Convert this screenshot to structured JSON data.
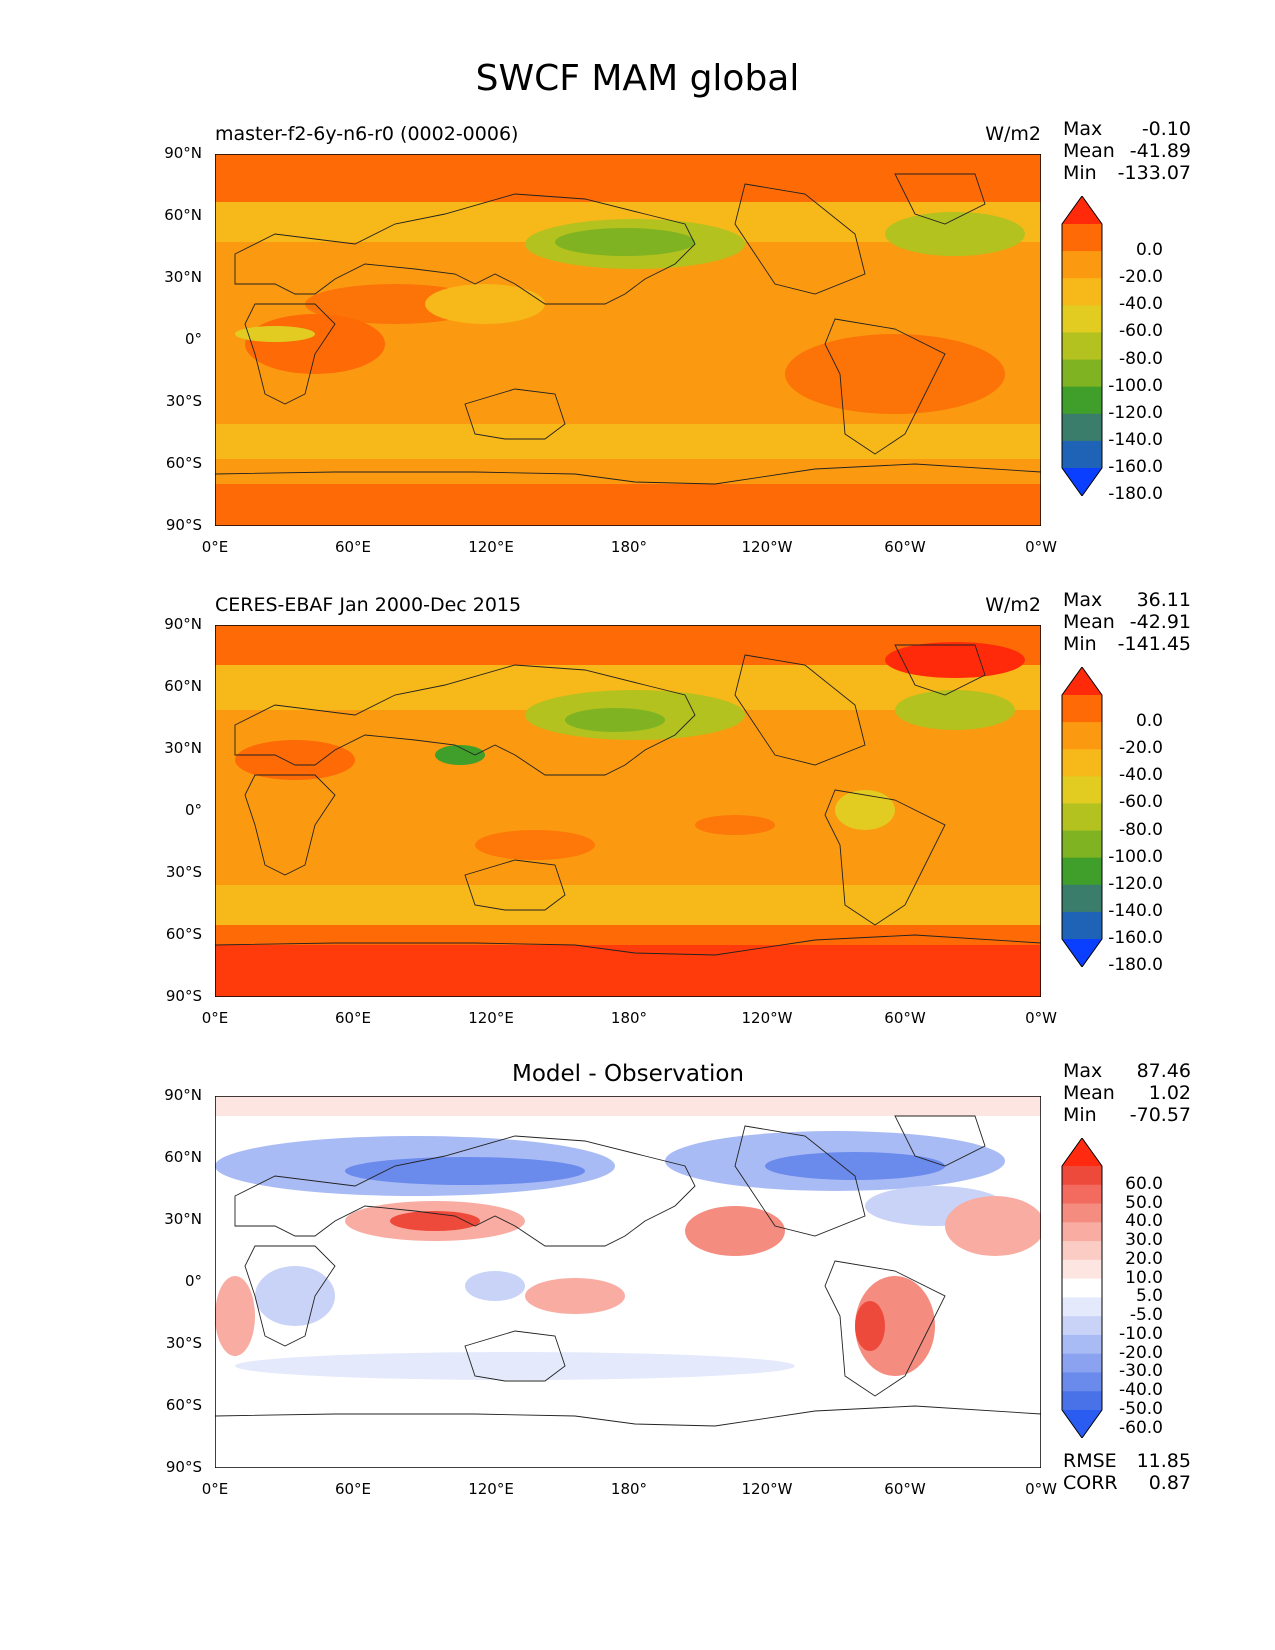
{
  "figure": {
    "title": "SWCF MAM global"
  },
  "lat_ticks": [
    "90°N",
    "60°N",
    "30°N",
    "0°",
    "30°S",
    "60°S",
    "90°S"
  ],
  "lon_ticks": [
    "0°E",
    "60°E",
    "120°E",
    "180°",
    "120°W",
    "60°W",
    "0°W"
  ],
  "panels": [
    {
      "title": "master-f2-6y-n6-r0 (0002-0006)",
      "title_align": "left",
      "units": "W/m2",
      "stats": {
        "max_label": "Max",
        "max": "-0.10",
        "mean_label": "Mean",
        "mean": "-41.89",
        "min_label": "Min",
        "min": "-133.07"
      },
      "colorbar": {
        "labels": [
          "0.0",
          "-20.0",
          "-40.0",
          "-60.0",
          "-80.0",
          "-100.0",
          "-120.0",
          "-140.0",
          "-160.0",
          "-180.0"
        ],
        "colors": [
          "#ff2a0a",
          "#fd6a06",
          "#fb9a10",
          "#f7b819",
          "#e2cc22",
          "#b3c21e",
          "#7fb321",
          "#3f9f2a",
          "#3a7d6a",
          "#1e63b6",
          "#0a3fff"
        ]
      }
    },
    {
      "title": "CERES-EBAF Jan 2000-Dec 2015",
      "title_align": "left",
      "units": "W/m2",
      "stats": {
        "max_label": "Max",
        "max": "36.11",
        "mean_label": "Mean",
        "mean": "-42.91",
        "min_label": "Min",
        "min": "-141.45"
      },
      "colorbar": {
        "labels": [
          "0.0",
          "-20.0",
          "-40.0",
          "-60.0",
          "-80.0",
          "-100.0",
          "-120.0",
          "-140.0",
          "-160.0",
          "-180.0"
        ],
        "colors": [
          "#ff2a0a",
          "#fd6a06",
          "#fb9a10",
          "#f7b819",
          "#e2cc22",
          "#b3c21e",
          "#7fb321",
          "#3f9f2a",
          "#3a7d6a",
          "#1e63b6",
          "#0a3fff"
        ]
      }
    },
    {
      "title": "Model - Observation",
      "title_align": "center",
      "units": "",
      "stats": {
        "max_label": "Max",
        "max": "87.46",
        "mean_label": "Mean",
        "mean": "1.02",
        "min_label": "Min",
        "min": "-70.57"
      },
      "colorbar": {
        "labels": [
          "60.0",
          "50.0",
          "40.0",
          "30.0",
          "20.0",
          "10.0",
          "5.0",
          "-5.0",
          "-10.0",
          "-20.0",
          "-30.0",
          "-40.0",
          "-50.0",
          "-60.0"
        ],
        "colors": [
          "#ff2a10",
          "#ee4a3c",
          "#f26b5e",
          "#f58c80",
          "#f8aca2",
          "#fbccc4",
          "#fde6e2",
          "#ffffff",
          "#e4e9fb",
          "#c9d3f8",
          "#a9bbf4",
          "#8aa2f0",
          "#6a8aec",
          "#4a72e8",
          "#2a5cf2"
        ]
      },
      "extra": {
        "rmse_label": "RMSE",
        "rmse": "11.85",
        "corr_label": "CORR",
        "corr": "0.87"
      }
    }
  ]
}
